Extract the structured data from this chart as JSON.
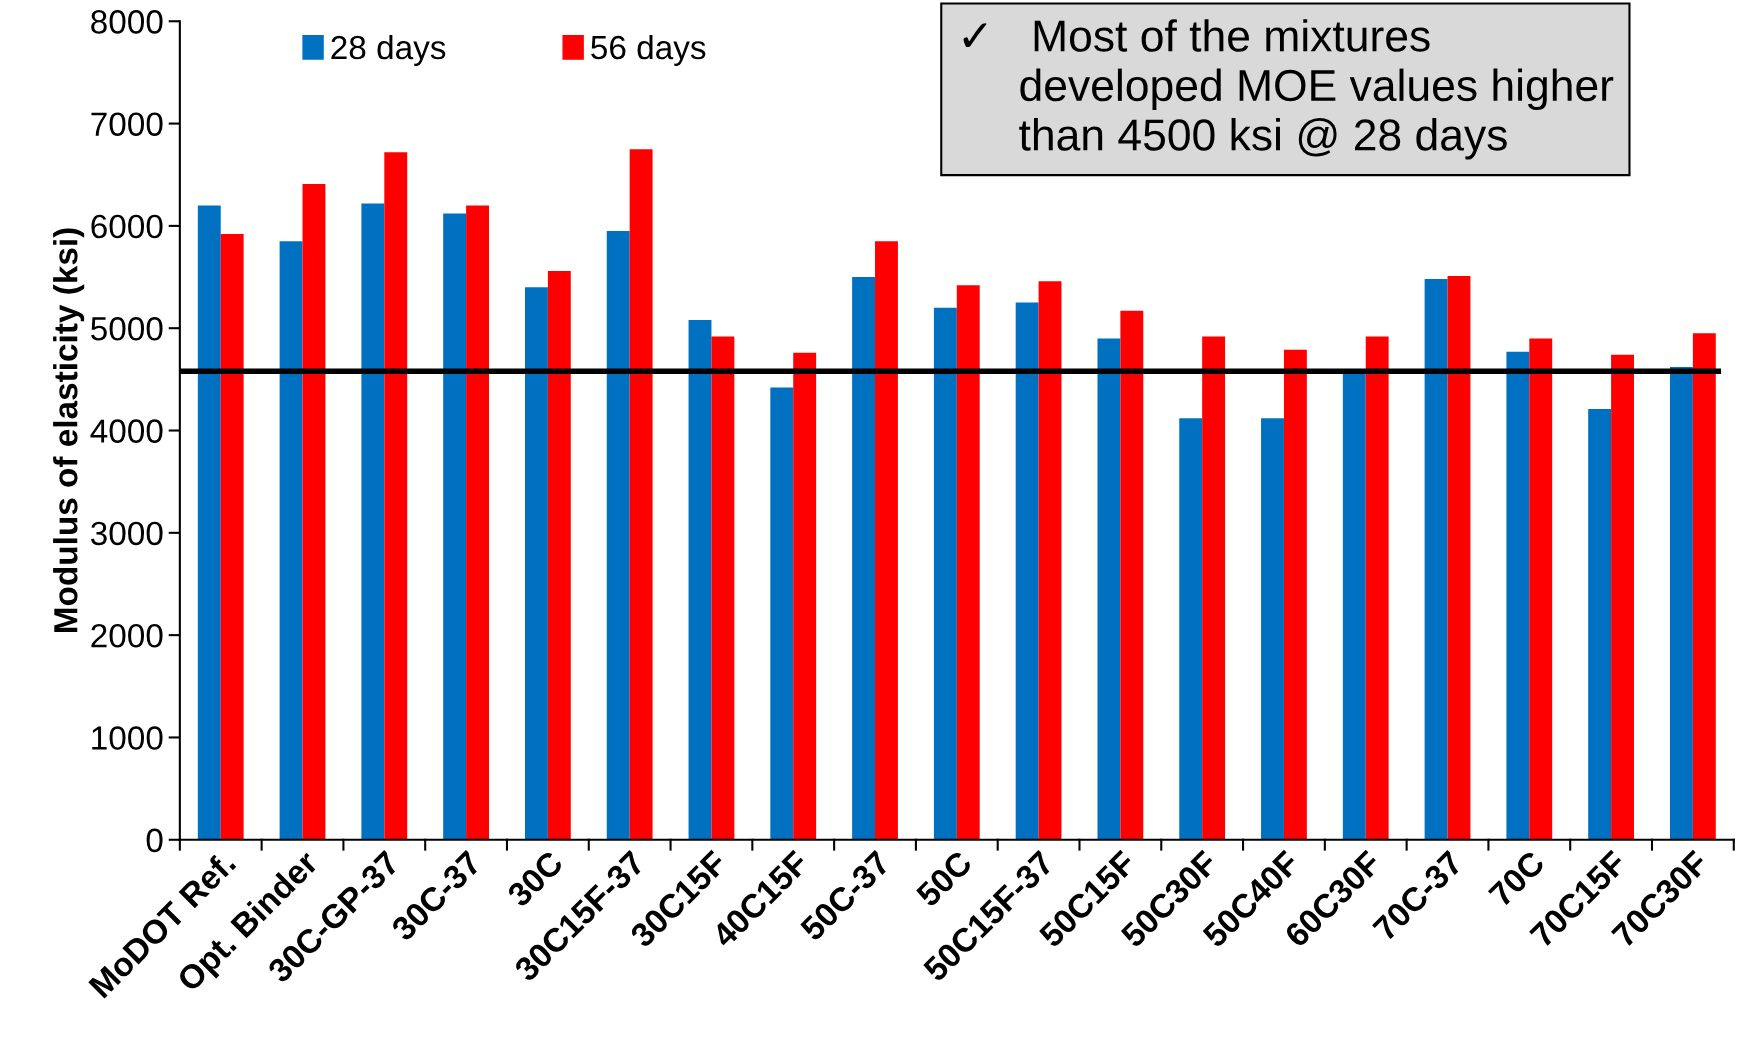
{
  "chart_data": {
    "type": "bar",
    "ylabel": "Modulus of elasticity (ksi)",
    "categories": [
      "MoDOT Ref.",
      "Opt. Binder",
      "30C-GP-37",
      "30C-37",
      "30C",
      "30C15F-37",
      "30C15F",
      "40C15F",
      "50C-37",
      "50C",
      "50C15F-37",
      "50C15F",
      "50C30F",
      "50C40F",
      "60C30F",
      "70C-37",
      "70C",
      "70C15F",
      "70C30F"
    ],
    "series": [
      {
        "name": "28 days",
        "color": "#0070c0",
        "values": [
          6200,
          5850,
          6220,
          6120,
          5400,
          5950,
          5080,
          4420,
          5500,
          5200,
          5250,
          4900,
          4120,
          4120,
          4590,
          5480,
          4770,
          4210,
          4620
        ]
      },
      {
        "name": "56 days",
        "color": "#ff0000",
        "values": [
          5920,
          6410,
          6720,
          6200,
          5560,
          6750,
          4920,
          4760,
          5850,
          5420,
          5460,
          5170,
          4920,
          4790,
          4920,
          5510,
          4900,
          4740,
          4950
        ]
      }
    ],
    "ylim": [
      0,
      8000
    ],
    "yticks": [
      0,
      1000,
      2000,
      3000,
      4000,
      5000,
      6000,
      7000,
      8000
    ],
    "ref_lines": [
      {
        "axis": "y",
        "value": 4580,
        "color": "#000000",
        "line_style": "solid"
      }
    ],
    "annotations": [
      "✓   Most of the mixtures\n     developed MOE values higher\n     than 4500 ksi @ 28 days"
    ],
    "legend": "top left",
    "grid": false
  }
}
